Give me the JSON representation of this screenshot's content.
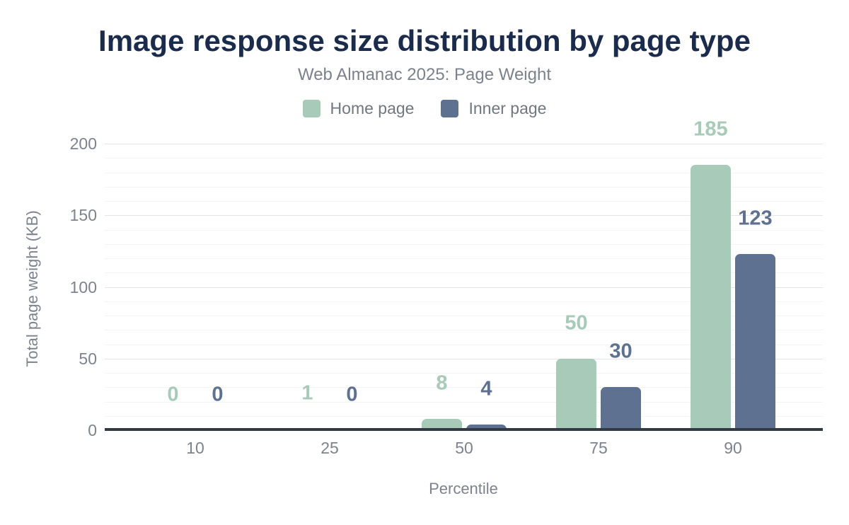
{
  "chart_data": {
    "type": "bar",
    "title": "Image response size distribution by page type",
    "subtitle": "Web Almanac 2025: Page Weight",
    "xlabel": "Percentile",
    "ylabel": "Total page weight (KB)",
    "categories": [
      "10",
      "25",
      "50",
      "75",
      "90"
    ],
    "series": [
      {
        "name": "Home page",
        "color": "#a8cbb9",
        "values": [
          0,
          1,
          8,
          50,
          185
        ]
      },
      {
        "name": "Inner page",
        "color": "#5e7190",
        "values": [
          0,
          0,
          4,
          30,
          123
        ]
      }
    ],
    "ylim": [
      0,
      200
    ],
    "yticks": [
      0,
      50,
      100,
      150,
      200
    ],
    "grid": "horizontal; minor lines every 10, major lines every 50",
    "legend_position": "top-center",
    "data_labels": true
  },
  "colors": {
    "background": "#ffffff",
    "title_text": "#1a2b4c",
    "muted_text": "#7d838d",
    "axis_line": "#333a43",
    "grid_minor": "#f4f4f6",
    "grid_major": "#e5e5e9",
    "home_page_series": "#a8cbb9",
    "inner_page_series": "#5e7190"
  }
}
